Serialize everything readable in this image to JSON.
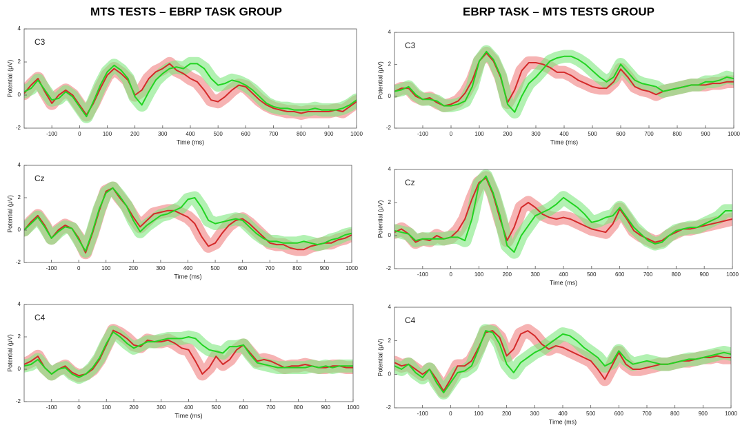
{
  "column_titles": [
    "MTS TESTS – EBRP TASK GROUP",
    "EBRP TASK – MTS TESTS GROUP"
  ],
  "chart_data": [
    {
      "type": "line",
      "label": "C3",
      "xlabel": "Time (ms)",
      "ylabel": "Potential (μV)",
      "x": [
        -200,
        -175,
        -150,
        -125,
        -100,
        -75,
        -50,
        -25,
        0,
        25,
        50,
        75,
        100,
        125,
        150,
        175,
        200,
        225,
        250,
        275,
        300,
        325,
        350,
        375,
        400,
        425,
        450,
        475,
        500,
        525,
        550,
        575,
        600,
        625,
        650,
        675,
        700,
        725,
        750,
        775,
        800,
        825,
        850,
        875,
        900,
        925,
        950,
        975,
        1000
      ],
      "xlim": [
        -200,
        1000
      ],
      "ylim": [
        -2,
        4
      ],
      "xticks": [
        -100,
        0,
        100,
        200,
        300,
        400,
        500,
        600,
        700,
        800,
        900,
        1000
      ],
      "yticks": [
        -2,
        0,
        2,
        4
      ],
      "series": [
        {
          "color": "#d42a2a",
          "band_color": "#f08080",
          "error": 0.4,
          "values": [
            0.1,
            0.6,
            1.0,
            0.2,
            -0.5,
            0,
            0.3,
            0,
            -0.6,
            -1.2,
            -0.5,
            0.4,
            1.2,
            1.6,
            1.3,
            0.9,
            0,
            0.3,
            1.0,
            1.4,
            1.6,
            1.9,
            1.5,
            1.3,
            1.0,
            0.8,
            0.3,
            -0.3,
            -0.4,
            -0.1,
            0.3,
            0.6,
            0.5,
            0.1,
            -0.3,
            -0.6,
            -0.8,
            -0.9,
            -1.0,
            -1.0,
            -1.1,
            -1.0,
            -1.0,
            -1.0,
            -1.0,
            -0.9,
            -1.0,
            -0.7,
            -0.4
          ]
        },
        {
          "color": "#22d422",
          "band_color": "#7fe87f",
          "error": 0.4,
          "values": [
            0.2,
            0.4,
            0.9,
            0.3,
            -0.3,
            -0.2,
            0.2,
            -0.1,
            -0.7,
            -1.3,
            -0.4,
            0.6,
            1.4,
            1.8,
            1.5,
            1.0,
            -0.1,
            -0.6,
            0.2,
            0.9,
            1.3,
            1.6,
            1.7,
            1.6,
            1.9,
            1.9,
            1.6,
            1.0,
            0.6,
            0.7,
            0.9,
            0.8,
            0.6,
            0.3,
            -0.1,
            -0.5,
            -0.7,
            -0.8,
            -0.8,
            -0.9,
            -0.9,
            -0.9,
            -0.8,
            -0.9,
            -0.9,
            -0.9,
            -0.8,
            -0.6,
            -0.3
          ]
        }
      ]
    },
    {
      "type": "line",
      "label": "Cz",
      "xlabel": "Time (ms)",
      "ylabel": "Potential (μV)",
      "x": [
        -200,
        -175,
        -150,
        -125,
        -100,
        -75,
        -50,
        -25,
        0,
        25,
        50,
        75,
        100,
        125,
        150,
        175,
        200,
        225,
        250,
        275,
        300,
        325,
        350,
        375,
        400,
        425,
        450,
        475,
        500,
        525,
        550,
        575,
        600,
        625,
        650,
        675,
        700,
        725,
        750,
        775,
        800,
        825,
        850,
        875,
        900,
        925,
        950,
        975,
        1000
      ],
      "xlim": [
        -200,
        1000
      ],
      "ylim": [
        -2,
        4
      ],
      "xticks": [
        -100,
        0,
        100,
        200,
        300,
        400,
        500,
        600,
        700,
        800,
        900,
        1000
      ],
      "yticks": [
        -2,
        0,
        2,
        4
      ],
      "series": [
        {
          "color": "#d42a2a",
          "band_color": "#f08080",
          "error": 0.4,
          "values": [
            0,
            0.5,
            0.9,
            0.3,
            -0.5,
            0,
            0.3,
            0.1,
            -0.5,
            -1.4,
            -0.2,
            1.2,
            2.4,
            2.6,
            2.0,
            1.5,
            0.8,
            0.2,
            0.6,
            1.0,
            1.1,
            1.2,
            1.2,
            1.0,
            0.8,
            0.4,
            -0.4,
            -1.0,
            -0.8,
            -0.2,
            0.3,
            0.6,
            0.7,
            0.4,
            0,
            -0.4,
            -0.8,
            -0.9,
            -0.9,
            -1.1,
            -1.2,
            -1.2,
            -1.0,
            -0.9,
            -0.8,
            -0.8,
            -0.6,
            -0.5,
            -0.3
          ]
        },
        {
          "color": "#22d422",
          "band_color": "#7fe87f",
          "error": 0.4,
          "values": [
            0,
            0.4,
            0.8,
            0.2,
            -0.5,
            -0.1,
            0.2,
            0.1,
            -0.6,
            -1.3,
            -0.1,
            1.3,
            2.3,
            2.6,
            2.1,
            1.5,
            0.6,
            -0.1,
            0.3,
            0.6,
            0.9,
            1.0,
            1.2,
            1.4,
            1.9,
            2.0,
            1.4,
            0.6,
            0.4,
            0.5,
            0.6,
            0.7,
            0.6,
            0.2,
            -0.2,
            -0.5,
            -0.7,
            -0.7,
            -0.8,
            -0.8,
            -0.8,
            -0.7,
            -0.8,
            -0.9,
            -0.8,
            -0.6,
            -0.5,
            -0.3,
            -0.2
          ]
        }
      ]
    },
    {
      "type": "line",
      "label": "C4",
      "xlabel": "Time (ms)",
      "ylabel": "Potential (μV)",
      "x": [
        -200,
        -175,
        -150,
        -125,
        -100,
        -75,
        -50,
        -25,
        0,
        25,
        50,
        75,
        100,
        125,
        150,
        175,
        200,
        225,
        250,
        275,
        300,
        325,
        350,
        375,
        400,
        425,
        450,
        475,
        500,
        525,
        550,
        575,
        600,
        625,
        650,
        675,
        700,
        725,
        750,
        775,
        800,
        825,
        850,
        875,
        900,
        925,
        950,
        975,
        1000
      ],
      "xlim": [
        -200,
        1000
      ],
      "ylim": [
        -2,
        4
      ],
      "xticks": [
        -100,
        0,
        100,
        200,
        300,
        400,
        500,
        600,
        700,
        800,
        900,
        1000
      ],
      "yticks": [
        -2,
        0,
        2,
        4
      ],
      "series": [
        {
          "color": "#d42a2a",
          "band_color": "#f08080",
          "error": 0.4,
          "values": [
            0.3,
            0.5,
            0.8,
            0.1,
            -0.3,
            0,
            0.2,
            -0.2,
            -0.4,
            -0.3,
            0,
            0.6,
            1.5,
            2.4,
            2.2,
            1.9,
            1.5,
            1.4,
            1.8,
            1.7,
            1.7,
            1.8,
            1.6,
            1.3,
            1.2,
            0.5,
            -0.3,
            0.1,
            0.8,
            0.3,
            0.6,
            1.2,
            1.5,
            1.0,
            0.5,
            0.6,
            0.5,
            0.3,
            0.1,
            0.2,
            0.2,
            0.3,
            0.2,
            0.1,
            0.1,
            0.2,
            0.2,
            0.1,
            0.1
          ]
        },
        {
          "color": "#22d422",
          "band_color": "#7fe87f",
          "error": 0.4,
          "values": [
            0.2,
            0.3,
            0.6,
            0.1,
            -0.3,
            0,
            0.1,
            -0.3,
            -0.5,
            -0.3,
            0.1,
            0.7,
            1.6,
            2.3,
            2.0,
            1.6,
            1.3,
            1.5,
            1.7,
            1.7,
            1.8,
            1.9,
            1.9,
            1.9,
            2.0,
            1.9,
            1.5,
            1.2,
            1.1,
            1.0,
            1.4,
            1.4,
            1.5,
            0.9,
            0.4,
            0.3,
            0.2,
            0.1,
            0.1,
            0.1,
            0.1,
            0.1,
            0.2,
            0.1,
            0.2,
            0.1,
            0.2,
            0.2,
            0.2
          ]
        }
      ]
    },
    {
      "type": "line",
      "label": "C3",
      "xlabel": "Time (ms)",
      "ylabel": "Potential (μV)",
      "x": [
        -200,
        -175,
        -150,
        -125,
        -100,
        -75,
        -50,
        -25,
        0,
        25,
        50,
        75,
        100,
        125,
        150,
        175,
        200,
        225,
        250,
        275,
        300,
        325,
        350,
        375,
        400,
        425,
        450,
        475,
        500,
        525,
        550,
        575,
        600,
        625,
        650,
        675,
        700,
        725,
        750,
        775,
        800,
        825,
        850,
        875,
        900,
        925,
        950,
        975,
        1000
      ],
      "xlim": [
        -200,
        1000
      ],
      "ylim": [
        -2,
        4
      ],
      "xticks": [
        -100,
        0,
        100,
        200,
        300,
        400,
        500,
        600,
        700,
        800,
        900,
        1000
      ],
      "yticks": [
        -2,
        0,
        2,
        4
      ],
      "series": [
        {
          "color": "#d42a2a",
          "band_color": "#f08080",
          "error": 0.4,
          "values": [
            0.3,
            0.5,
            0.5,
            0,
            -0.2,
            -0.1,
            -0.4,
            -0.6,
            -0.5,
            -0.3,
            0.2,
            1.0,
            2.2,
            2.7,
            2.2,
            1.2,
            -0.4,
            0.4,
            1.6,
            2.1,
            2.1,
            2.0,
            1.8,
            1.5,
            1.5,
            1.3,
            1.0,
            0.8,
            0.6,
            0.5,
            0.5,
            0.9,
            1.7,
            1.2,
            0.6,
            0.4,
            0.3,
            0.1,
            0.3,
            0.4,
            0.5,
            0.6,
            0.7,
            0.7,
            0.7,
            0.8,
            0.8,
            0.9,
            0.9
          ]
        },
        {
          "color": "#22d422",
          "band_color": "#7fe87f",
          "error": 0.4,
          "values": [
            0.3,
            0.4,
            0.6,
            0.1,
            -0.2,
            -0.2,
            -0.3,
            -0.6,
            -0.6,
            -0.5,
            -0.3,
            0.6,
            2.2,
            2.8,
            2.3,
            1.3,
            -0.5,
            -1.0,
            0,
            0.8,
            1.2,
            1.7,
            2.2,
            2.4,
            2.5,
            2.5,
            2.3,
            2.0,
            1.6,
            1.2,
            0.9,
            1.2,
            2.0,
            1.5,
            1.0,
            0.8,
            0.7,
            0.6,
            0.3,
            0.4,
            0.5,
            0.6,
            0.7,
            0.7,
            0.9,
            0.9,
            1.0,
            1.2,
            1.1
          ]
        }
      ]
    },
    {
      "type": "line",
      "label": "Cz",
      "xlabel": "Time (ms)",
      "ylabel": "Potential (μV)",
      "x": [
        -200,
        -175,
        -150,
        -125,
        -100,
        -75,
        -50,
        -25,
        0,
        25,
        50,
        75,
        100,
        125,
        150,
        175,
        200,
        225,
        250,
        275,
        300,
        325,
        350,
        375,
        400,
        425,
        450,
        475,
        500,
        525,
        550,
        575,
        600,
        625,
        650,
        675,
        700,
        725,
        750,
        775,
        800,
        825,
        850,
        875,
        900,
        925,
        950,
        975,
        1000
      ],
      "xlim": [
        -200,
        1000
      ],
      "ylim": [
        -2,
        4
      ],
      "xticks": [
        -100,
        0,
        100,
        200,
        300,
        400,
        500,
        600,
        700,
        800,
        900,
        1000
      ],
      "yticks": [
        -2,
        0,
        2,
        4
      ],
      "series": [
        {
          "color": "#d42a2a",
          "band_color": "#f08080",
          "error": 0.4,
          "values": [
            0.2,
            0.4,
            0.1,
            -0.4,
            -0.2,
            -0.3,
            0,
            -0.2,
            -0.1,
            0.3,
            1.0,
            2.2,
            3.2,
            3.5,
            2.5,
            1.0,
            -0.3,
            0.5,
            1.7,
            2.0,
            1.7,
            1.3,
            1.1,
            1.0,
            1.1,
            1.0,
            0.8,
            0.6,
            0.4,
            0.3,
            0.2,
            0.7,
            1.6,
            1.0,
            0.3,
            0,
            -0.2,
            -0.4,
            -0.3,
            0,
            0.2,
            0.4,
            0.4,
            0.5,
            0.6,
            0.7,
            0.8,
            0.9,
            1.0
          ]
        },
        {
          "color": "#22d422",
          "band_color": "#7fe87f",
          "error": 0.4,
          "values": [
            0.3,
            0.2,
            0.1,
            -0.3,
            -0.2,
            -0.2,
            -0.2,
            -0.2,
            -0.1,
            -0.1,
            -0.3,
            1.0,
            3.1,
            3.6,
            2.6,
            1.2,
            -0.6,
            -1.0,
            0,
            0.6,
            1.2,
            1.4,
            1.6,
            1.9,
            2.3,
            2.0,
            1.7,
            1.3,
            0.8,
            0.9,
            1.1,
            1.2,
            1.7,
            1.1,
            0.5,
            0.1,
            -0.3,
            -0.5,
            -0.4,
            0,
            0.3,
            0.4,
            0.5,
            0.5,
            0.7,
            0.9,
            1.1,
            1.5,
            1.5
          ]
        }
      ]
    },
    {
      "type": "line",
      "label": "C4",
      "xlabel": "Time (ms)",
      "ylabel": "Potential (μV)",
      "x": [
        -200,
        -175,
        -150,
        -125,
        -100,
        -75,
        -50,
        -25,
        0,
        25,
        50,
        75,
        100,
        125,
        150,
        175,
        200,
        225,
        250,
        275,
        300,
        325,
        350,
        375,
        400,
        425,
        450,
        475,
        500,
        525,
        550,
        575,
        600,
        625,
        650,
        675,
        700,
        725,
        750,
        775,
        800,
        825,
        850,
        875,
        900,
        925,
        950,
        975,
        1000
      ],
      "xlim": [
        -200,
        1000
      ],
      "ylim": [
        -2,
        4
      ],
      "xticks": [
        -100,
        0,
        100,
        200,
        300,
        400,
        500,
        600,
        700,
        800,
        900,
        1000
      ],
      "yticks": [
        -2,
        0,
        2,
        4
      ],
      "series": [
        {
          "color": "#d42a2a",
          "band_color": "#f08080",
          "error": 0.4,
          "values": [
            0.7,
            0.5,
            0.6,
            0.3,
            0,
            0.3,
            -0.3,
            -1.0,
            -0.3,
            0.5,
            0.5,
            0.8,
            1.6,
            2.5,
            2.6,
            2.2,
            1.1,
            1.5,
            2.4,
            2.6,
            2.3,
            1.8,
            1.5,
            1.7,
            1.6,
            1.4,
            1.2,
            1.0,
            0.8,
            0.3,
            -0.3,
            0.5,
            1.3,
            0.6,
            0.3,
            0.3,
            0.4,
            0.5,
            0.6,
            0.6,
            0.7,
            0.8,
            0.8,
            0.9,
            1.0,
            1.0,
            1.1,
            1.0,
            1.0
          ]
        },
        {
          "color": "#22d422",
          "band_color": "#7fe87f",
          "error": 0.4,
          "values": [
            0.5,
            0.3,
            0.6,
            0.1,
            -0.2,
            0.3,
            -0.5,
            -1.1,
            -0.5,
            0.1,
            0.2,
            0.5,
            1.5,
            2.6,
            2.5,
            1.8,
            0.6,
            0.1,
            0.7,
            1.0,
            1.3,
            1.5,
            1.8,
            2.1,
            2.4,
            2.3,
            2.0,
            1.6,
            1.3,
            1.0,
            0.5,
            0.7,
            1.4,
            0.9,
            0.6,
            0.7,
            0.8,
            0.7,
            0.6,
            0.6,
            0.7,
            0.8,
            0.9,
            0.9,
            1.0,
            1.1,
            1.2,
            1.3,
            1.2
          ]
        }
      ]
    }
  ]
}
